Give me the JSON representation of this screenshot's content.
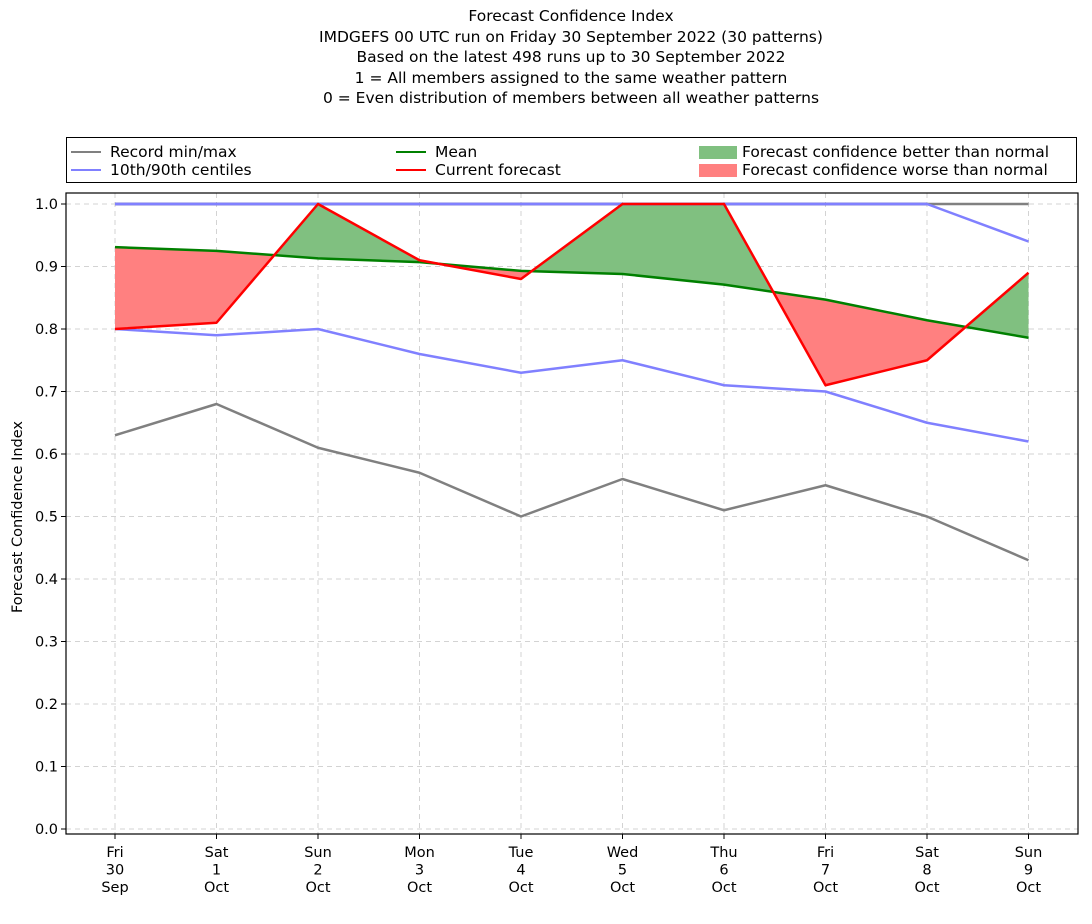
{
  "title_lines": [
    "Forecast Confidence Index",
    "IMDGEFS 00 UTC run on Friday 30 September 2022 (30 patterns)",
    "Based on the latest 498 runs up to 30 September 2022",
    "1 = All members assigned to the same weather pattern",
    "0 = Even distribution of members between all weather patterns"
  ],
  "legend": {
    "record": "Record min/max",
    "centiles": "10th/90th centiles",
    "mean": "Mean",
    "current": "Current forecast",
    "better": "Forecast confidence better than normal",
    "worse": "Forecast confidence worse than normal"
  },
  "colors": {
    "record": "#808080",
    "centiles": "#8080ff",
    "mean": "#008000",
    "current": "#ff0000",
    "better": "#80c080",
    "worse": "#ff8080",
    "record_max_overlap": "#4040c0"
  },
  "chart_data": {
    "type": "line",
    "ylabel": "Forecast Confidence Index",
    "ylim": [
      0.0,
      1.0
    ],
    "yticks": [
      "0.0",
      "0.1",
      "0.2",
      "0.3",
      "0.4",
      "0.5",
      "0.6",
      "0.7",
      "0.8",
      "0.9",
      "1.0"
    ],
    "grid": true,
    "legend_position": "top",
    "x_labels": [
      [
        "Fri",
        "30",
        "Sep"
      ],
      [
        "Sat",
        "1",
        "Oct"
      ],
      [
        "Sun",
        "2",
        "Oct"
      ],
      [
        "Mon",
        "3",
        "Oct"
      ],
      [
        "Tue",
        "4",
        "Oct"
      ],
      [
        "Wed",
        "5",
        "Oct"
      ],
      [
        "Thu",
        "6",
        "Oct"
      ],
      [
        "Fri",
        "7",
        "Oct"
      ],
      [
        "Sat",
        "8",
        "Oct"
      ],
      [
        "Sun",
        "9",
        "Oct"
      ]
    ],
    "series": [
      {
        "name": "Record min/max",
        "role": "record_min",
        "values": [
          0.63,
          0.68,
          0.61,
          0.57,
          0.5,
          0.56,
          0.51,
          0.55,
          0.5,
          0.43
        ]
      },
      {
        "name": "Record min/max",
        "role": "record_max",
        "values": [
          1.0,
          1.0,
          1.0,
          1.0,
          1.0,
          1.0,
          1.0,
          1.0,
          1.0,
          1.0
        ]
      },
      {
        "name": "10th/90th centiles",
        "role": "p10",
        "values": [
          0.8,
          0.79,
          0.8,
          0.76,
          0.73,
          0.75,
          0.71,
          0.7,
          0.65,
          0.62
        ]
      },
      {
        "name": "10th/90th centiles",
        "role": "p90",
        "values": [
          1.0,
          1.0,
          1.0,
          1.0,
          1.0,
          1.0,
          1.0,
          1.0,
          1.0,
          0.94
        ]
      },
      {
        "name": "Mean",
        "role": "mean",
        "values": [
          0.931,
          0.925,
          0.913,
          0.907,
          0.893,
          0.888,
          0.871,
          0.847,
          0.814,
          0.786
        ]
      },
      {
        "name": "Current forecast",
        "role": "current",
        "values": [
          0.8,
          0.81,
          1.0,
          0.91,
          0.88,
          1.0,
          1.0,
          0.71,
          0.75,
          0.89
        ]
      }
    ]
  }
}
